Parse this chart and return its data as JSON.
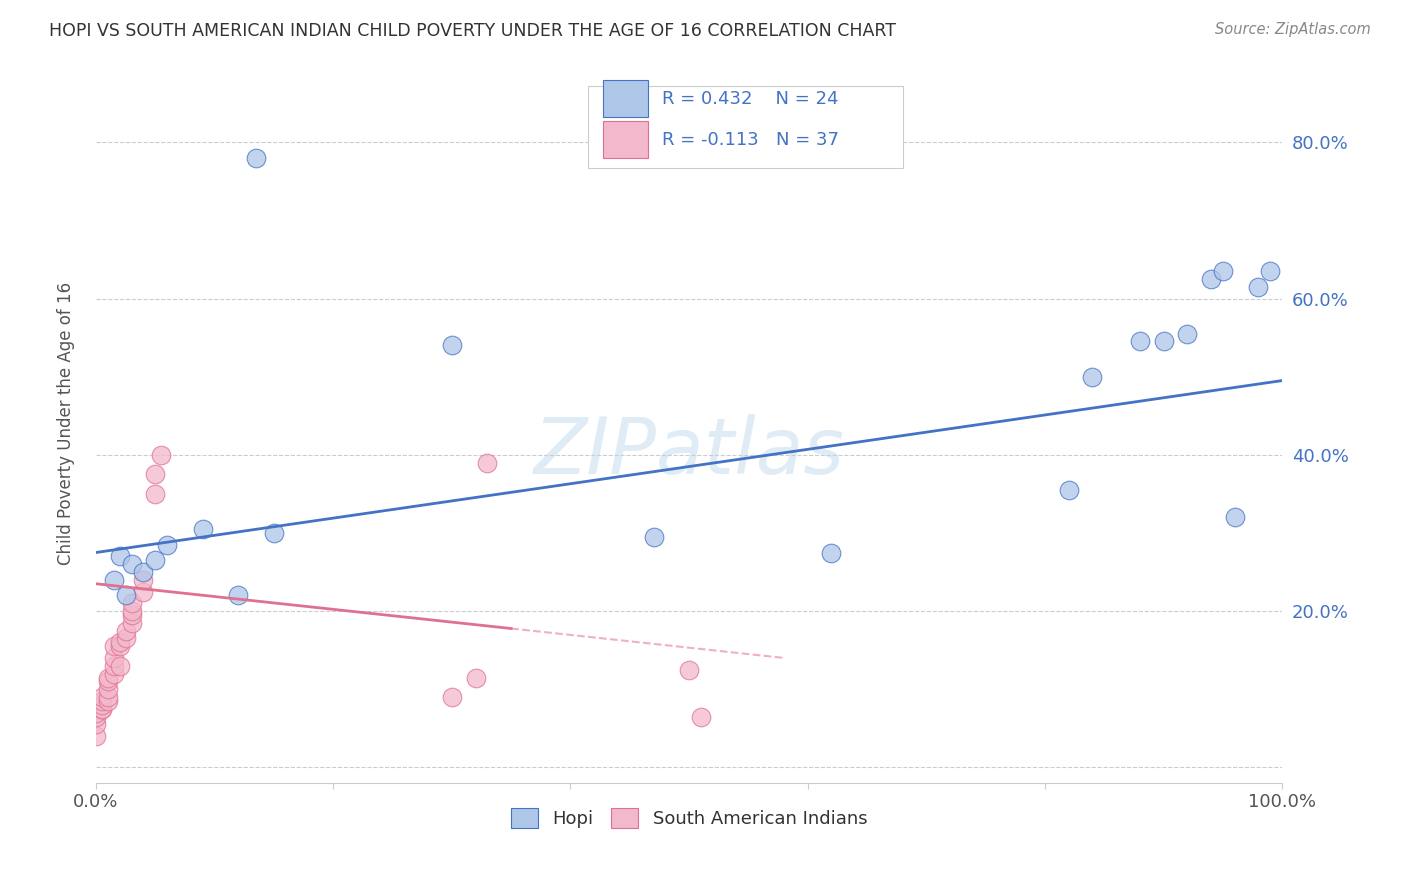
{
  "title": "HOPI VS SOUTH AMERICAN INDIAN CHILD POVERTY UNDER THE AGE OF 16 CORRELATION CHART",
  "source": "Source: ZipAtlas.com",
  "ylabel": "Child Poverty Under the Age of 16",
  "xlim": [
    0,
    1.0
  ],
  "ylim": [
    -0.02,
    0.9
  ],
  "hopi_R": 0.432,
  "hopi_N": 24,
  "sa_R": -0.113,
  "sa_N": 37,
  "hopi_color": "#aec6e8",
  "sa_color": "#f2b8cb",
  "hopi_edge_color": "#4472c4",
  "sa_edge_color": "#e07090",
  "hopi_line_color": "#4472c4",
  "sa_line_color": "#e07090",
  "watermark": "ZIPatlas",
  "legend_R_color": "#4472c4",
  "hopi_x": [
    0.015,
    0.02,
    0.025,
    0.03,
    0.04,
    0.05,
    0.06,
    0.09,
    0.12,
    0.15,
    0.3,
    0.47,
    0.62,
    0.82,
    0.84,
    0.88,
    0.9,
    0.92,
    0.94,
    0.95,
    0.96,
    0.98,
    0.99,
    0.135
  ],
  "hopi_y": [
    0.24,
    0.27,
    0.22,
    0.26,
    0.25,
    0.265,
    0.285,
    0.305,
    0.22,
    0.3,
    0.54,
    0.295,
    0.275,
    0.355,
    0.5,
    0.545,
    0.545,
    0.555,
    0.625,
    0.635,
    0.32,
    0.615,
    0.635,
    0.78
  ],
  "sa_x": [
    0.0,
    0.0,
    0.0,
    0.0,
    0.005,
    0.005,
    0.005,
    0.005,
    0.005,
    0.01,
    0.01,
    0.01,
    0.01,
    0.01,
    0.015,
    0.015,
    0.015,
    0.015,
    0.02,
    0.02,
    0.02,
    0.025,
    0.025,
    0.03,
    0.03,
    0.03,
    0.03,
    0.04,
    0.04,
    0.05,
    0.05,
    0.055,
    0.3,
    0.32,
    0.33,
    0.5,
    0.51
  ],
  "sa_y": [
    0.04,
    0.055,
    0.065,
    0.07,
    0.075,
    0.075,
    0.08,
    0.085,
    0.09,
    0.085,
    0.09,
    0.1,
    0.11,
    0.115,
    0.12,
    0.13,
    0.14,
    0.155,
    0.13,
    0.155,
    0.16,
    0.165,
    0.175,
    0.185,
    0.195,
    0.2,
    0.21,
    0.225,
    0.24,
    0.35,
    0.375,
    0.4,
    0.09,
    0.115,
    0.39,
    0.125,
    0.065
  ]
}
